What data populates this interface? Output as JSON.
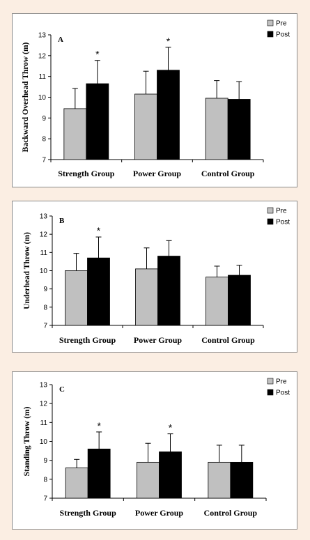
{
  "colors": {
    "background": "#fbeee3",
    "pre": "#c0c0c0",
    "post": "#000000"
  },
  "legend": {
    "pre_label": "Pre",
    "post_label": "Post"
  },
  "chart_data": [
    {
      "type": "bar",
      "panel_label": "A",
      "title": "",
      "xlabel": "",
      "ylabel": "Backward Overhead Throw (m)",
      "ylim": [
        7,
        13
      ],
      "yticks": [
        7,
        8,
        9,
        10,
        11,
        12,
        13
      ],
      "legend_position": "top-right",
      "categories": [
        "Strength Group",
        "Power Group",
        "Control Group"
      ],
      "series": [
        {
          "name": "Pre",
          "values": [
            9.45,
            10.15,
            9.95
          ],
          "error": [
            0.97,
            1.1,
            0.85
          ]
        },
        {
          "name": "Post",
          "values": [
            10.65,
            11.3,
            9.9
          ],
          "error": [
            1.12,
            1.1,
            0.85
          ]
        }
      ],
      "significance": [
        {
          "category": "Strength Group",
          "series": "Post",
          "symbol": "*"
        },
        {
          "category": "Power Group",
          "series": "Post",
          "symbol": "*"
        }
      ]
    },
    {
      "type": "bar",
      "panel_label": "B",
      "title": "",
      "xlabel": "",
      "ylabel": "Underhead Throw (m)",
      "ylim": [
        7,
        13
      ],
      "yticks": [
        7,
        8,
        9,
        10,
        11,
        12,
        13
      ],
      "legend_position": "top-right",
      "categories": [
        "Strength Group",
        "Power Group",
        "Control Group"
      ],
      "series": [
        {
          "name": "Pre",
          "values": [
            10.0,
            10.1,
            9.65
          ],
          "error": [
            0.95,
            1.15,
            0.6
          ]
        },
        {
          "name": "Post",
          "values": [
            10.7,
            10.8,
            9.75
          ],
          "error": [
            1.15,
            0.85,
            0.55
          ]
        }
      ],
      "significance": [
        {
          "category": "Strength Group",
          "series": "Post",
          "symbol": "*"
        }
      ]
    },
    {
      "type": "bar",
      "panel_label": "C",
      "title": "",
      "xlabel": "",
      "ylabel": "Standing Throw (m)",
      "ylim": [
        7,
        13
      ],
      "yticks": [
        7,
        8,
        9,
        10,
        11,
        12,
        13
      ],
      "legend_position": "top-right",
      "categories": [
        "Strength Group",
        "Power Group",
        "Control Group"
      ],
      "series": [
        {
          "name": "Pre",
          "values": [
            8.6,
            8.9,
            8.9
          ],
          "error": [
            0.45,
            1.0,
            0.9
          ]
        },
        {
          "name": "Post",
          "values": [
            9.6,
            9.45,
            8.9
          ],
          "error": [
            0.9,
            0.95,
            0.9
          ]
        }
      ],
      "significance": [
        {
          "category": "Strength Group",
          "series": "Post",
          "symbol": "*"
        },
        {
          "category": "Power Group",
          "series": "Post",
          "symbol": "*"
        }
      ]
    }
  ]
}
